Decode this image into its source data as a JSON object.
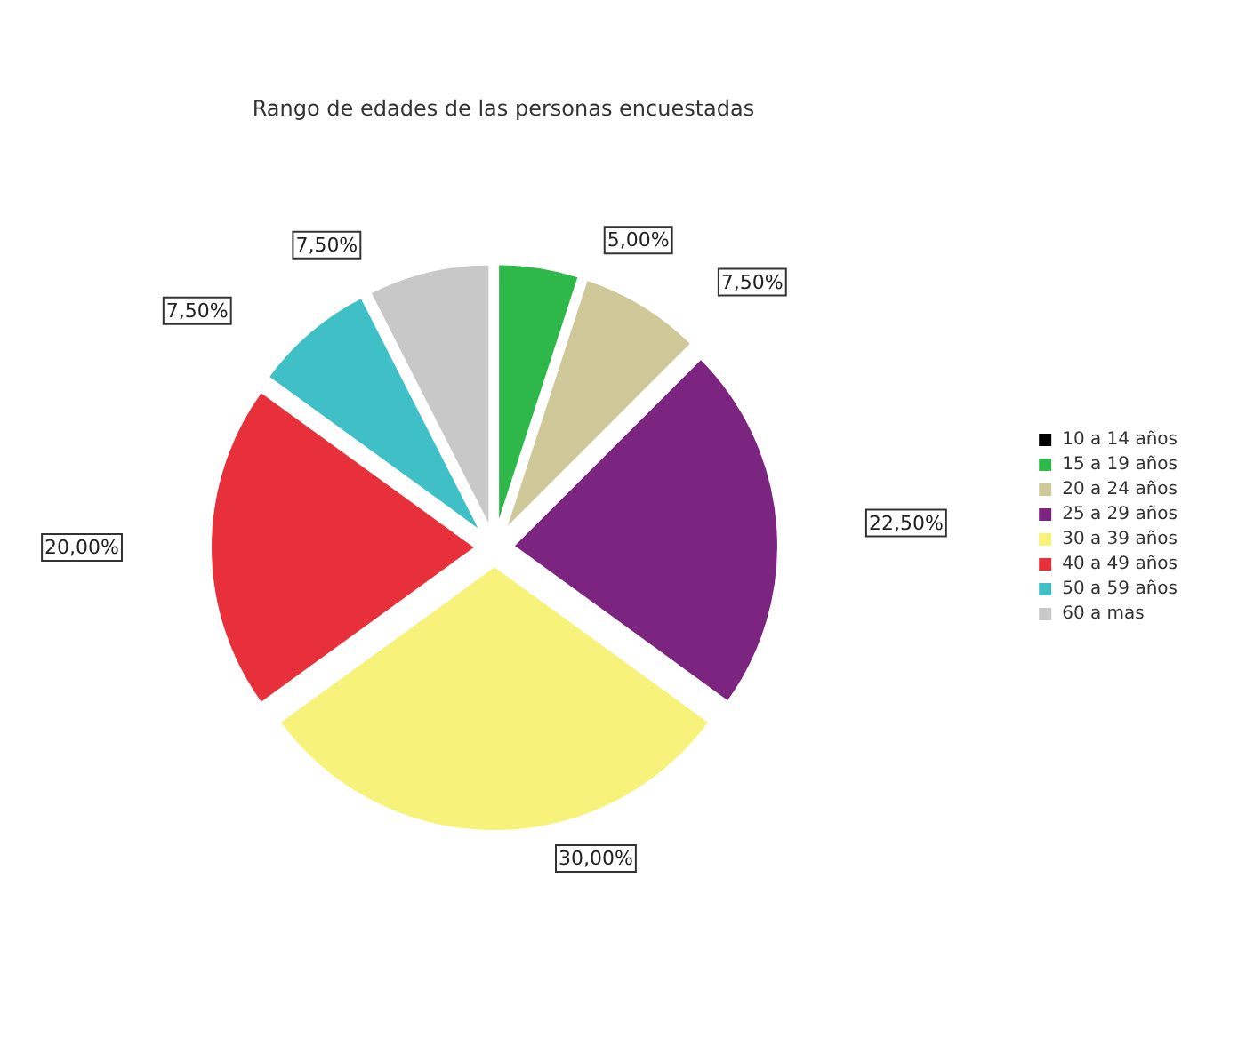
{
  "chart_data": {
    "type": "pie",
    "title": "Rango de edades de las personas encuestadas",
    "categories": [
      "10 a 14 años",
      "15 a 19 años",
      "20 a 24 años",
      "25 a 29 años",
      "30 a 39 años",
      "40 a 49 años",
      "50 a 59 años",
      "60 a mas"
    ],
    "values": [
      0,
      5,
      7.5,
      22.5,
      30,
      20,
      7.5,
      7.5
    ],
    "colors": [
      "#000000",
      "#2eb84a",
      "#cfc99a",
      "#7b2580",
      "#f6f27a",
      "#e8303a",
      "#3fbfc6",
      "#c8c8c8"
    ],
    "value_labels": [
      null,
      "5,00%",
      "7,50%",
      "22,50%",
      "30,00%",
      "20,00%",
      "7,50%",
      "7,50%"
    ],
    "legend": "right"
  }
}
